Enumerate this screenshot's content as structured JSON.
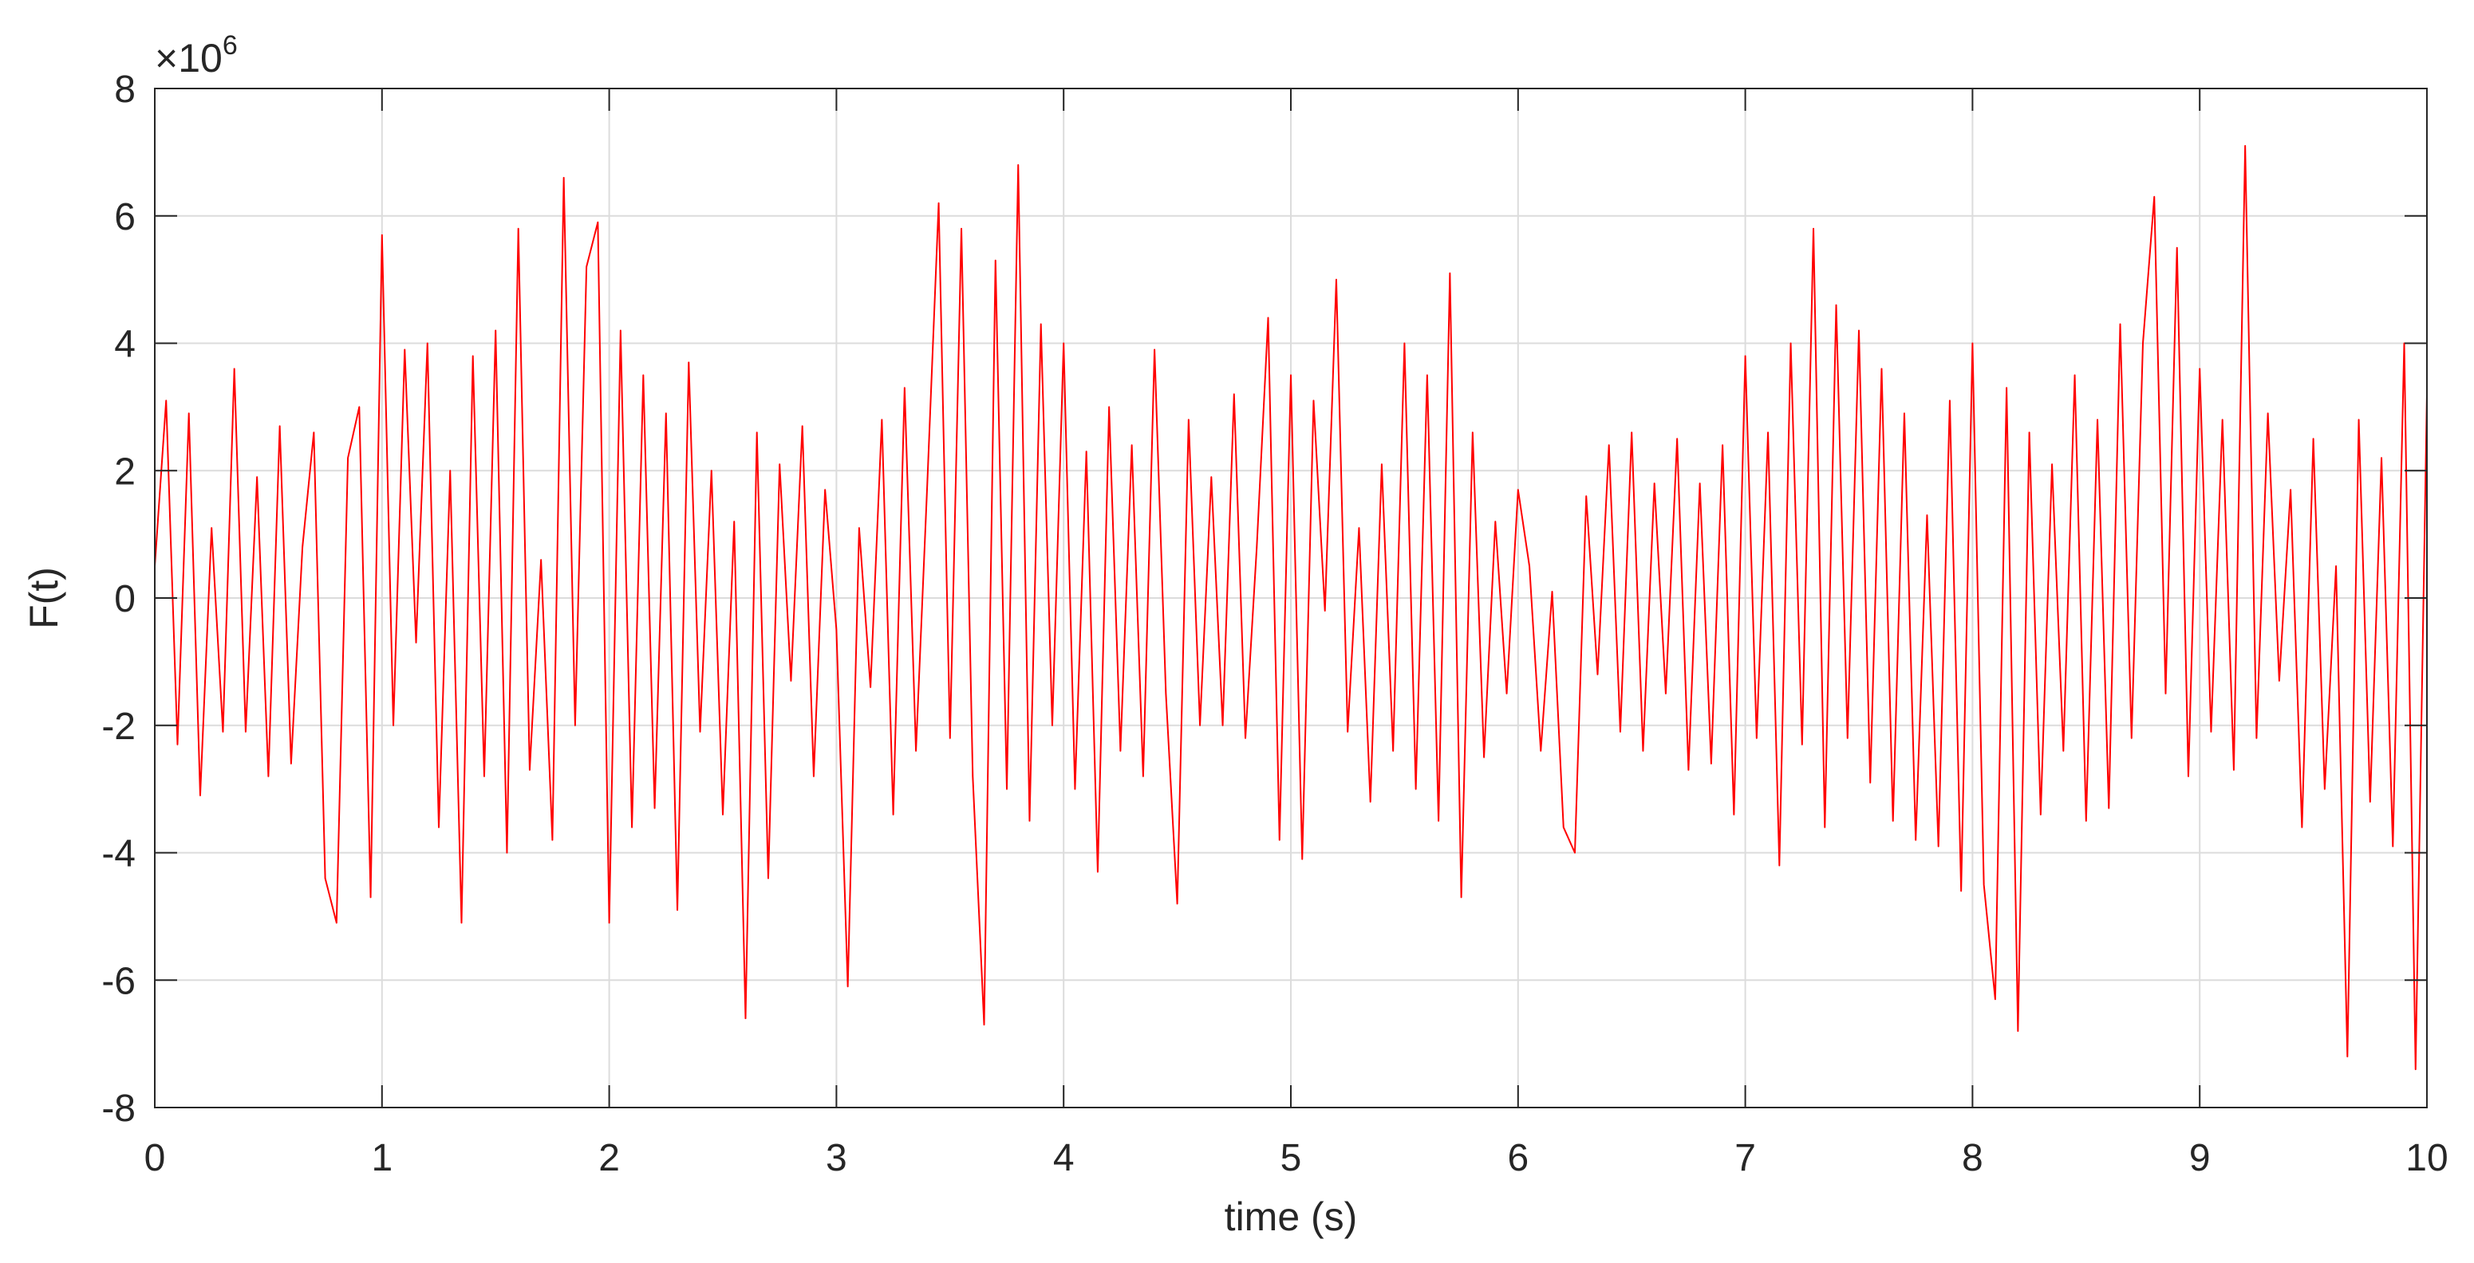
{
  "chart_data": {
    "type": "line",
    "xlabel": "time (s)",
    "ylabel": "F(t)",
    "y_multiplier": {
      "base": "×10",
      "exponent": "6"
    },
    "x": [
      0,
      0.05,
      0.1,
      0.15,
      0.2,
      0.25,
      0.3,
      0.35,
      0.4,
      0.45,
      0.5,
      0.55,
      0.6,
      0.65,
      0.7,
      0.75,
      0.8,
      0.85,
      0.9,
      0.95,
      1,
      1.05,
      1.1,
      1.15,
      1.2,
      1.25,
      1.3,
      1.35,
      1.4,
      1.45,
      1.5,
      1.55,
      1.6,
      1.65,
      1.7,
      1.75,
      1.8,
      1.85,
      1.9,
      1.95,
      2,
      2.05,
      2.1,
      2.15,
      2.2,
      2.25,
      2.3,
      2.35,
      2.4,
      2.45,
      2.5,
      2.55,
      2.6,
      2.65,
      2.7,
      2.75,
      2.8,
      2.85,
      2.9,
      2.95,
      3,
      3.05,
      3.1,
      3.15,
      3.2,
      3.25,
      3.3,
      3.35,
      3.4,
      3.45,
      3.5,
      3.55,
      3.6,
      3.65,
      3.7,
      3.75,
      3.8,
      3.85,
      3.9,
      3.95,
      4,
      4.05,
      4.1,
      4.15,
      4.2,
      4.25,
      4.3,
      4.35,
      4.4,
      4.45,
      4.5,
      4.55,
      4.6,
      4.65,
      4.7,
      4.75,
      4.8,
      4.85,
      4.9,
      4.95,
      5,
      5.05,
      5.1,
      5.15,
      5.2,
      5.25,
      5.3,
      5.35,
      5.4,
      5.45,
      5.5,
      5.55,
      5.6,
      5.65,
      5.7,
      5.75,
      5.8,
      5.85,
      5.9,
      5.95,
      6,
      6.05,
      6.1,
      6.15,
      6.2,
      6.25,
      6.3,
      6.35,
      6.4,
      6.45,
      6.5,
      6.55,
      6.6,
      6.65,
      6.7,
      6.75,
      6.8,
      6.85,
      6.9,
      6.95,
      7,
      7.05,
      7.1,
      7.15,
      7.2,
      7.25,
      7.3,
      7.35,
      7.4,
      7.45,
      7.5,
      7.55,
      7.6,
      7.65,
      7.7,
      7.75,
      7.8,
      7.85,
      7.9,
      7.95,
      8,
      8.05,
      8.1,
      8.15,
      8.2,
      8.25,
      8.3,
      8.35,
      8.4,
      8.45,
      8.5,
      8.55,
      8.6,
      8.65,
      8.7,
      8.75,
      8.8,
      8.85,
      8.9,
      8.95,
      9,
      9.05,
      9.1,
      9.15,
      9.2,
      9.25,
      9.3,
      9.35,
      9.4,
      9.45,
      9.5,
      9.55,
      9.6,
      9.65,
      9.7,
      9.75,
      9.8,
      9.85,
      9.9,
      9.95,
      10
    ],
    "series": [
      {
        "color": "#ff0000",
        "values": [
          0.5,
          3.1,
          -2.3,
          2.9,
          -3.1,
          1.1,
          -2.1,
          3.6,
          -2.1,
          1.9,
          -2.8,
          2.7,
          -2.6,
          0.8,
          2.6,
          -4.4,
          -5.1,
          2.2,
          3.0,
          -4.7,
          5.7,
          -2.0,
          3.9,
          -0.7,
          4.0,
          -3.6,
          2.0,
          -5.1,
          3.8,
          -2.8,
          4.2,
          -4.0,
          5.8,
          -2.7,
          0.6,
          -3.8,
          6.6,
          -2.0,
          5.2,
          5.9,
          -5.1,
          4.2,
          -3.6,
          3.5,
          -3.3,
          2.9,
          -4.9,
          3.7,
          -2.1,
          2.0,
          -3.4,
          1.2,
          -6.6,
          2.6,
          -4.4,
          2.1,
          -1.3,
          2.7,
          -2.8,
          1.7,
          -0.5,
          -6.1,
          1.1,
          -1.4,
          2.8,
          -3.4,
          3.3,
          -2.4,
          1.8,
          6.2,
          -2.2,
          5.8,
          -2.8,
          -6.7,
          5.3,
          -3.0,
          6.8,
          -3.5,
          4.3,
          -2.0,
          4.0,
          -3.0,
          2.3,
          -4.3,
          3.0,
          -2.4,
          2.4,
          -2.8,
          3.9,
          -1.5,
          -4.8,
          2.8,
          -2.0,
          1.9,
          -2.0,
          3.2,
          -2.2,
          0.8,
          4.4,
          -3.8,
          3.5,
          -4.1,
          3.1,
          -0.2,
          5.0,
          -2.1,
          1.1,
          -3.2,
          2.1,
          -2.4,
          4.0,
          -3.0,
          3.5,
          -3.5,
          5.1,
          -4.7,
          2.6,
          -2.5,
          1.2,
          -1.5,
          1.7,
          0.5,
          -2.4,
          0.1,
          -3.6,
          -4.0,
          1.6,
          -1.2,
          2.4,
          -2.1,
          2.6,
          -2.4,
          1.8,
          -1.5,
          2.5,
          -2.7,
          1.8,
          -2.6,
          2.4,
          -3.4,
          3.8,
          -2.2,
          2.6,
          -4.2,
          4.0,
          -2.3,
          5.8,
          -3.6,
          4.6,
          -2.2,
          4.2,
          -2.9,
          3.6,
          -3.5,
          2.9,
          -3.8,
          1.3,
          -3.9,
          3.1,
          -4.6,
          4.0,
          -4.5,
          -6.3,
          3.3,
          -6.8,
          2.6,
          -3.4,
          2.1,
          -2.4,
          3.5,
          -3.5,
          2.8,
          -3.3,
          4.3,
          -2.2,
          4.0,
          6.3,
          -1.5,
          5.5,
          -2.8,
          3.6,
          -2.1,
          2.8,
          -2.7,
          7.1,
          -2.2,
          2.9,
          -1.3,
          1.7,
          -3.6,
          2.5,
          -3.0,
          0.5,
          -7.2,
          2.8,
          -3.2,
          2.2,
          -3.9,
          4.0,
          -7.4,
          3.2
        ]
      }
    ],
    "xlim": [
      0,
      10
    ],
    "xticks": [
      0,
      1,
      2,
      3,
      4,
      5,
      6,
      7,
      8,
      9,
      10
    ],
    "ylim": [
      -8,
      8
    ],
    "yticks": [
      -8,
      -6,
      -4,
      -2,
      0,
      2,
      4,
      6,
      8
    ],
    "grid": true
  }
}
